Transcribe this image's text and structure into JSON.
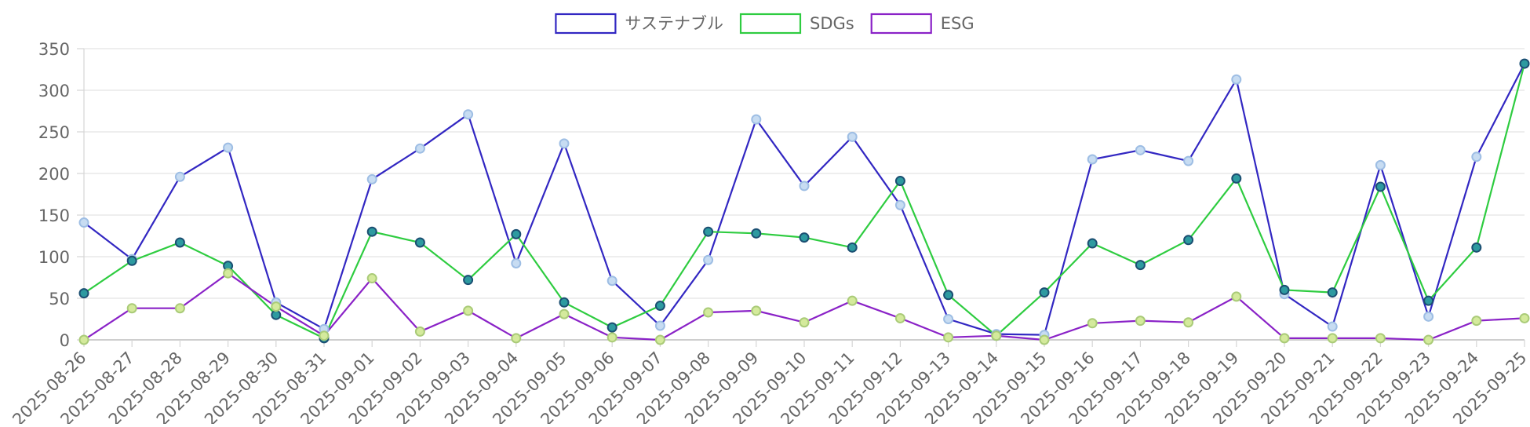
{
  "chart_data": {
    "type": "line",
    "categories": [
      "2025-08-26",
      "2025-08-27",
      "2025-08-28",
      "2025-08-29",
      "2025-08-30",
      "2025-08-31",
      "2025-09-01",
      "2025-09-02",
      "2025-09-03",
      "2025-09-04",
      "2025-09-05",
      "2025-09-06",
      "2025-09-07",
      "2025-09-08",
      "2025-09-09",
      "2025-09-10",
      "2025-09-11",
      "2025-09-12",
      "2025-09-13",
      "2025-09-14",
      "2025-09-15",
      "2025-09-16",
      "2025-09-17",
      "2025-09-18",
      "2025-09-19",
      "2025-09-20",
      "2025-09-21",
      "2025-09-22",
      "2025-09-23",
      "2025-09-24",
      "2025-09-25"
    ],
    "series": [
      {
        "name": "サステナブル",
        "color": "#3227c2",
        "point_fill": "#c7dcf2",
        "point_stroke": "#9ebee4",
        "values": [
          141,
          97,
          196,
          231,
          45,
          13,
          193,
          230,
          271,
          92,
          236,
          71,
          17,
          96,
          265,
          185,
          244,
          162,
          25,
          7,
          6,
          217,
          228,
          215,
          313,
          55,
          16,
          210,
          28,
          220,
          332
        ]
      },
      {
        "name": "SDGs",
        "color": "#2ecc40",
        "point_fill": "#2d9aa0",
        "point_stroke": "#1b4f72",
        "values": [
          56,
          95,
          117,
          89,
          30,
          2,
          130,
          117,
          72,
          127,
          45,
          15,
          41,
          130,
          128,
          123,
          111,
          191,
          54,
          5,
          57,
          116,
          90,
          120,
          194,
          60,
          57,
          184,
          47,
          111,
          332
        ]
      },
      {
        "name": "ESG",
        "color": "#8a22c7",
        "point_fill": "#d4ea9c",
        "point_stroke": "#aacb78",
        "values": [
          0,
          38,
          38,
          80,
          40,
          5,
          74,
          10,
          35,
          2,
          31,
          3,
          0,
          33,
          35,
          21,
          47,
          26,
          3,
          5,
          0,
          20,
          23,
          21,
          52,
          2,
          2,
          2,
          0,
          23,
          26
        ]
      }
    ],
    "y_ticks": [
      "0",
      "50",
      "100",
      "150",
      "200",
      "250",
      "300",
      "350"
    ],
    "ylim": [
      0,
      350
    ],
    "grid": true,
    "legend_position": "top-center",
    "title": "",
    "xlabel": "",
    "ylabel": ""
  }
}
